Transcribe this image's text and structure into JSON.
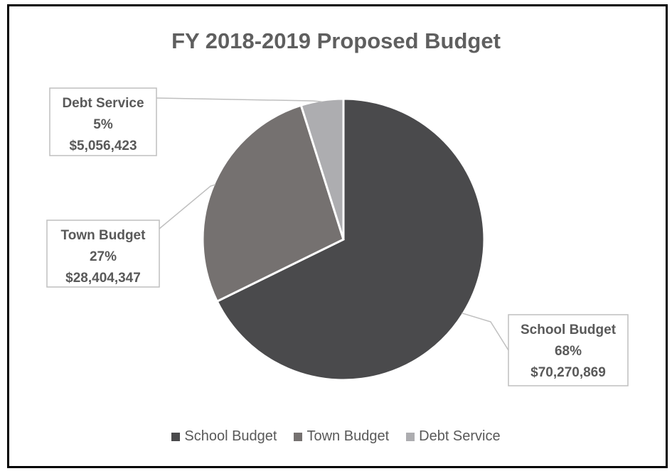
{
  "chart_data": {
    "type": "pie",
    "title": "FY 2018-2019 Proposed Budget",
    "categories": [
      "School Budget",
      "Town Budget",
      "Debt Service"
    ],
    "values": [
      70270869,
      28404347,
      5056423
    ],
    "percent_labels": [
      "68%",
      "27%",
      "5%"
    ],
    "value_labels": [
      "$70,270,869",
      "$28,404,347",
      "$5,056,423"
    ],
    "colors": [
      "#4a4a4c",
      "#757170",
      "#adadb0"
    ],
    "start_angle": "12 o'clock",
    "direction": "clockwise",
    "legend_position": "bottom"
  }
}
